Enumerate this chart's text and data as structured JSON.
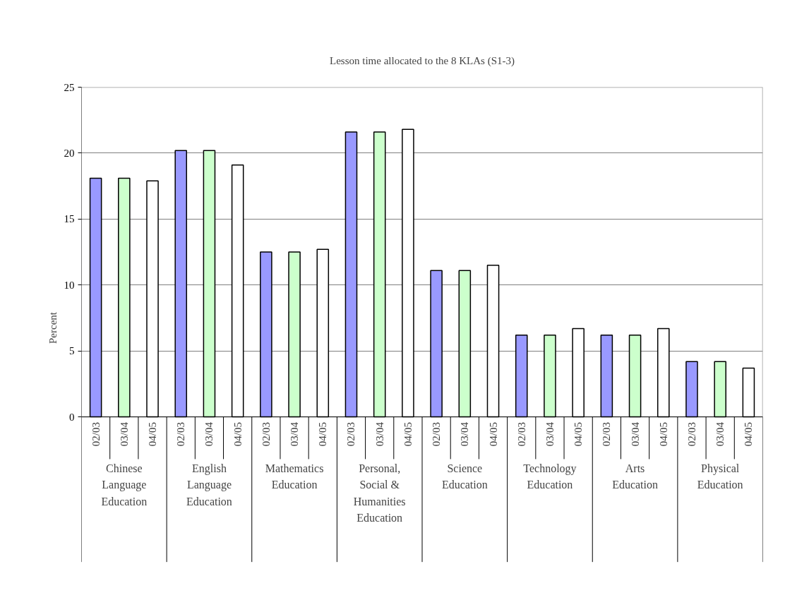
{
  "chart_data": {
    "type": "bar",
    "title": "Lesson time allocated to the 8 KLAs (S1-3)",
    "ylabel": "Percent",
    "categories": [
      "Chinese Language Education",
      "English Language Education",
      "Mathematics Education",
      "Personal, Social & Humanities Education",
      "Science Education",
      "Technology Education",
      "Arts Education",
      "Physical Education"
    ],
    "series": [
      {
        "name": "02/03",
        "color": "#9999ff",
        "values": [
          18.1,
          20.2,
          12.5,
          21.6,
          11.1,
          6.2,
          6.2,
          4.2
        ]
      },
      {
        "name": "03/04",
        "color": "#ccffcc",
        "values": [
          18.1,
          20.2,
          12.5,
          21.6,
          11.1,
          6.2,
          6.2,
          4.2
        ]
      },
      {
        "name": "04/05",
        "color": "#ffffff",
        "values": [
          17.9,
          19.1,
          12.7,
          21.8,
          11.5,
          6.7,
          6.7,
          3.7
        ]
      }
    ],
    "ylim": [
      0,
      25
    ],
    "yticks": [
      0,
      5,
      10,
      15,
      20,
      25
    ],
    "grid": "y"
  }
}
